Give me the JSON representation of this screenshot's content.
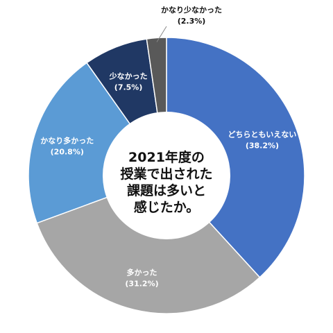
{
  "chart_data": {
    "type": "pie",
    "donut": true,
    "title_lines": [
      "2021年度の",
      "授業で出された",
      "課題は多いと",
      "感じたか。"
    ],
    "slices": [
      {
        "label": "どちらともいえない",
        "value_text": "(38.2%)",
        "value": 38.2,
        "color": "#4472C4",
        "label_color": "#ffffff"
      },
      {
        "label": "多かった",
        "value_text": "(31.2%)",
        "value": 31.2,
        "color": "#A6A6A6",
        "label_color": "#ffffff"
      },
      {
        "label": "かなり多かった",
        "value_text": "(20.8%)",
        "value": 20.8,
        "color": "#5B9BD5",
        "label_color": "#ffffff"
      },
      {
        "label": "少なかった",
        "value_text": "(7.5%)",
        "value": 7.5,
        "color": "#203864",
        "label_color": "#ffffff"
      },
      {
        "label": "かなり少なかった",
        "value_text": "(2.3%)",
        "value": 2.3,
        "color": "#595959",
        "label_color": "#111111"
      }
    ],
    "start_angle_deg": 0,
    "direction": "clockwise",
    "legend": "none"
  }
}
